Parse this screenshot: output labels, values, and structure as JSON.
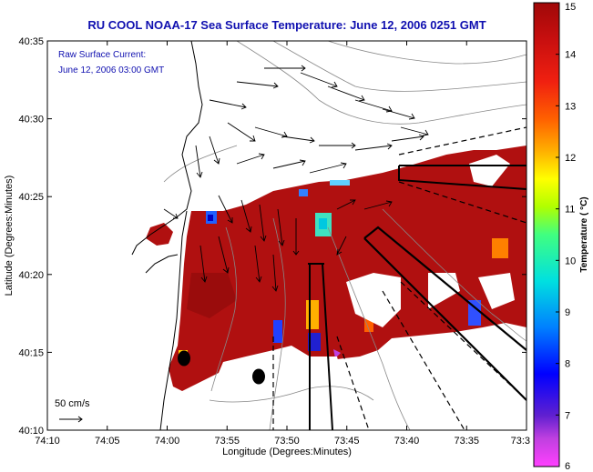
{
  "chart_data": {
    "type": "heatmap",
    "title": "RU COOL  NOAA-17  Sea Surface Temperature:  June 12, 2006 0251 GMT",
    "annotation_lines": [
      "Raw Surface Current:",
      "June 12, 2006 03:00 GMT"
    ],
    "xlabel": "Longitude (Degrees:Minutes)",
    "ylabel": "Latitude (Degrees:Minutes)",
    "x_ticks": [
      "74:10",
      "74:05",
      "74:00",
      "73:55",
      "73:50",
      "73:45",
      "73:40",
      "73:35",
      "73:3"
    ],
    "y_ticks": [
      "40:10",
      "40:15",
      "40:20",
      "40:25",
      "40:30",
      "40:35"
    ],
    "xlim": [
      -74.1667,
      -73.5
    ],
    "ylim": [
      40.1667,
      40.5833
    ],
    "colorbar": {
      "label": "Temperature ( °C)",
      "ticks": [
        "6",
        "7",
        "8",
        "9",
        "10",
        "11",
        "12",
        "13",
        "14",
        "15"
      ],
      "range": [
        6,
        15
      ]
    },
    "scale_arrow_label": "50 cm/s",
    "grid": false
  },
  "colors": {
    "title": "#1010b0",
    "annotation": "#1010b0",
    "sst_dominant": "#b01010"
  }
}
